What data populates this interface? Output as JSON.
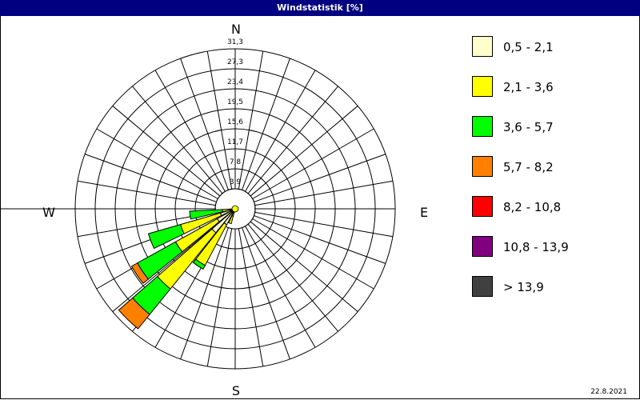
{
  "title": "Windstatistik [%]",
  "date": "22.8.2021",
  "chart_data": {
    "type": "wind-rose",
    "title": "Windstatistik [%]",
    "compass": {
      "N": "N",
      "E": "E",
      "S": "S",
      "W": "W"
    },
    "ring_labels": [
      "3,9",
      "7,8",
      "11,7",
      "15,6",
      "19,5",
      "23,4",
      "27,3",
      "31,3"
    ],
    "ring_values": [
      3.9,
      7.8,
      11.7,
      15.6,
      19.5,
      23.4,
      27.3,
      31.3
    ],
    "rlim": [
      0,
      31.3
    ],
    "sector_width_deg": 10,
    "directions_deg": [
      200,
      213,
      224,
      236,
      249,
      262
    ],
    "series": [
      {
        "name": "0,5 - 2,1",
        "color": "#ffffcc",
        "values": [
          1.5,
          3.5,
          6.0,
          4.0,
          3.0,
          1.0
        ]
      },
      {
        "name": "2,1 - 3,6",
        "color": "#ffff00",
        "values": [
          1.5,
          9.0,
          14.1,
          9.3,
          8.1,
          1.5
        ]
      },
      {
        "name": "3,6 - 5,7",
        "color": "#00ff00",
        "values": [
          0,
          0.8,
          6.4,
          8.5,
          6.5,
          6.4
        ]
      },
      {
        "name": "5,7 - 8,2",
        "color": "#ff8000",
        "values": [
          0,
          0,
          3.6,
          1.3,
          0,
          0
        ]
      },
      {
        "name": "8,2 - 10,8",
        "color": "#ff0000",
        "values": [
          0,
          0,
          0,
          0,
          0,
          0
        ]
      },
      {
        "name": "10,8 - 13,9",
        "color": "#800080",
        "values": [
          0,
          0,
          0,
          0,
          0,
          0
        ]
      },
      {
        "name": " > 13,9",
        "color": "#404040",
        "values": [
          0,
          0,
          0,
          0,
          0,
          0
        ]
      }
    ],
    "calm_color": "#ffff00",
    "grid": true,
    "legend_position": "right"
  }
}
